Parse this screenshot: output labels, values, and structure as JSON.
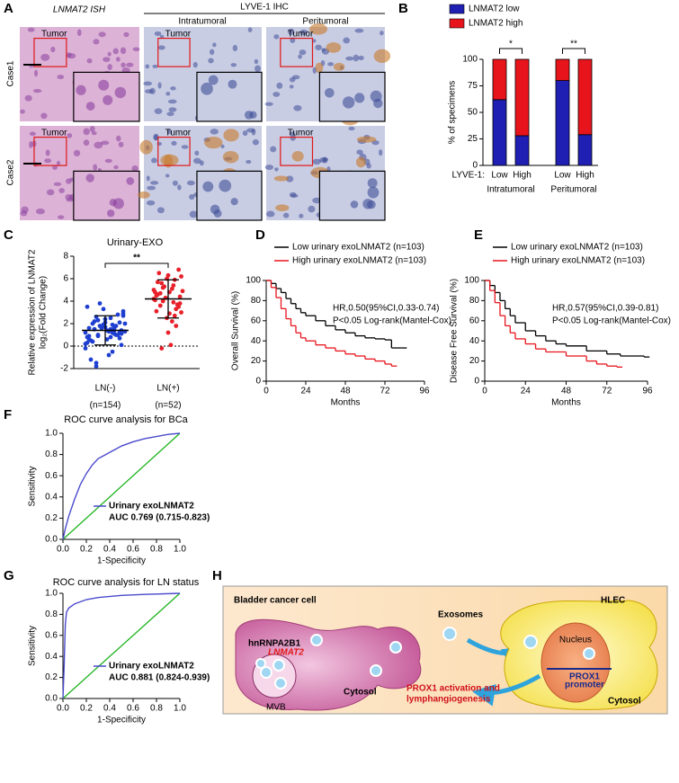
{
  "panel_a": {
    "label": "A",
    "ish_header": "LNMAT2 ISH",
    "ihc_header": "LYVE-1 IHC",
    "subheaders": [
      "Intratumoral",
      "Peritumoral"
    ],
    "rows": [
      "Case1",
      "Case2"
    ],
    "tumor_label": "Tumor"
  },
  "chart_data": [
    {
      "type": "stacked_bar",
      "label": "B",
      "ylabel": "% of specimens",
      "ylim": [
        0,
        100
      ],
      "yticks": [
        0,
        25,
        50,
        75,
        100
      ],
      "x_prefix": "LYVE-1:",
      "categories": [
        "Low",
        "High",
        "Low",
        "High"
      ],
      "group_labels": [
        "Intratumoral",
        "Peritumoral"
      ],
      "group_significance": [
        "*",
        "**"
      ],
      "series": [
        {
          "name": "LNMAT2 low",
          "color": "#1f1fb4",
          "values": [
            62,
            28,
            80,
            29
          ]
        },
        {
          "name": "LNMAT2 high",
          "color": "#e8141c",
          "values": [
            38,
            72,
            20,
            71
          ]
        }
      ]
    },
    {
      "type": "strip",
      "label": "C",
      "title": "Urinary-EXO",
      "ylabel": [
        "Relative expression of LNMAT2",
        "log₂(Fold Change)"
      ],
      "ylim": [
        -2,
        8
      ],
      "yticks": [
        -2,
        0,
        2,
        4,
        6,
        8
      ],
      "refline": 0,
      "significance": "**",
      "categories": [
        "LN(-)",
        "LN(+)"
      ],
      "n_labels": [
        "(n=154)",
        "(n=52)"
      ],
      "groups": [
        {
          "color": "#1f3fd0",
          "mean": 1.4,
          "sd": 1.3,
          "values": [
            1.2,
            0.8,
            1.5,
            2.1,
            1.9,
            0.3,
            -0.5,
            2.6,
            1.1,
            1.7,
            0.9,
            1.4,
            2.3,
            3.1,
            0.6,
            -1.2,
            1.0,
            1.8,
            2.0,
            1.3,
            0.4,
            2.8,
            1.6,
            -0.2,
            1.5,
            2.2,
            0.7,
            1.9,
            3.5,
            1.2,
            -1.8,
            0.1,
            2.4,
            1.6,
            1.1,
            0.9,
            2.7,
            1.4,
            0.5,
            1.8,
            3.8,
            1.3,
            -0.8,
            2.0,
            1.0,
            1.7,
            0.2,
            2.5,
            1.5,
            1.2,
            3.3,
            0.8,
            1.9,
            -1.5,
            1.4,
            2.1,
            0.6,
            1.6,
            1.0,
            2.9
          ]
        },
        {
          "color": "#e8202a",
          "mean": 4.2,
          "sd": 1.7,
          "values": [
            4.2,
            5.1,
            3.6,
            6.8,
            2.5,
            4.8,
            3.9,
            5.6,
            4.4,
            1.2,
            3.1,
            5.9,
            4.0,
            6.2,
            2.9,
            4.6,
            3.3,
            5.3,
            4.9,
            0.1,
            6.5,
            3.7,
            4.3,
            5.0,
            2.2,
            4.7,
            3.5,
            6.0,
            4.1,
            5.4,
            -0.2,
            3.8,
            6.3,
            4.5,
            2.7,
            5.2,
            3.0,
            4.8,
            5.7,
            1.8
          ]
        }
      ]
    },
    {
      "type": "survival",
      "label": "D",
      "xlabel": "Months",
      "ylabel": "Overall Survival (%)",
      "xlim": [
        0,
        96
      ],
      "xticks": [
        0,
        24,
        48,
        72,
        96
      ],
      "ylim": [
        0,
        100
      ],
      "yticks": [
        0,
        20,
        40,
        60,
        80,
        100
      ],
      "annotations": [
        "HR,0.50(95%CI,0.33-0.74)",
        "P<0.05 Log-rank(Mantel-Cox)"
      ],
      "series": [
        {
          "name": "Low urinary exoLNMAT2 (n=103)",
          "color": "#000000",
          "x": [
            0,
            3,
            6,
            9,
            12,
            15,
            18,
            21,
            24,
            30,
            36,
            42,
            48,
            54,
            60,
            66,
            72,
            76,
            82
          ],
          "values": [
            100,
            97,
            92,
            88,
            82,
            77,
            72,
            68,
            65,
            60,
            55,
            51,
            48,
            45,
            43,
            42,
            41,
            33,
            33
          ]
        },
        {
          "name": "High urinary exoLNMAT2 (n=103)",
          "color": "#e8141c",
          "x": [
            0,
            3,
            6,
            9,
            12,
            15,
            18,
            21,
            24,
            30,
            36,
            42,
            48,
            54,
            60,
            66,
            72,
            76
          ],
          "values": [
            100,
            93,
            83,
            72,
            62,
            55,
            48,
            43,
            40,
            36,
            33,
            30,
            27,
            25,
            22,
            20,
            17,
            15
          ]
        }
      ]
    },
    {
      "type": "survival",
      "label": "E",
      "xlabel": "Months",
      "ylabel": "Disease Free Survival (%)",
      "xlim": [
        0,
        96
      ],
      "xticks": [
        0,
        24,
        48,
        72,
        96
      ],
      "ylim": [
        0,
        100
      ],
      "yticks": [
        0,
        20,
        40,
        60,
        80,
        100
      ],
      "annotations": [
        "HR,0.57(95%CI,0.39-0.81)",
        "P<0.05 Log-rank(Mantel-Cox)"
      ],
      "series": [
        {
          "name": "Low urinary exoLNMAT2 (n=103)",
          "color": "#000000",
          "x": [
            0,
            3,
            6,
            9,
            12,
            15,
            18,
            24,
            30,
            36,
            42,
            48,
            60,
            72,
            80,
            94
          ],
          "values": [
            100,
            95,
            88,
            80,
            72,
            65,
            58,
            50,
            45,
            40,
            37,
            35,
            30,
            27,
            25,
            24
          ]
        },
        {
          "name": "High urinary exoLNMAT2 (n=103)",
          "color": "#e8141c",
          "x": [
            0,
            3,
            6,
            9,
            12,
            15,
            18,
            24,
            30,
            36,
            48,
            60,
            66,
            72,
            78
          ],
          "values": [
            100,
            90,
            78,
            65,
            55,
            48,
            42,
            37,
            32,
            29,
            25,
            20,
            17,
            15,
            14
          ]
        }
      ]
    },
    {
      "type": "roc",
      "label": "F",
      "title": "ROC curve analysis for BCa",
      "xlabel": "1-Specificity",
      "ylabel": "Sensitivity",
      "xlim": [
        0,
        1
      ],
      "xticks": [
        {
          "value": 0,
          "label": "0.0"
        },
        0.2,
        0.4,
        0.6,
        0.8,
        {
          "value": 1,
          "label": "1.0"
        }
      ],
      "ylim": [
        0,
        1
      ],
      "yticks": [
        {
          "value": 0,
          "label": "0.0"
        },
        0.2,
        0.4,
        0.6,
        0.8,
        {
          "value": 1,
          "label": "1.0"
        }
      ],
      "reference_color": "#1db31d",
      "annotation": "AUC 0.769 (0.715-0.823)",
      "series": [
        {
          "name": "Urinary exoLNMAT2",
          "color": "#4a4acc",
          "x": [
            0,
            0.02,
            0.05,
            0.1,
            0.15,
            0.2,
            0.25,
            0.3,
            0.4,
            0.5,
            0.6,
            0.7,
            0.8,
            0.9,
            1
          ],
          "values": [
            0,
            0.1,
            0.22,
            0.38,
            0.52,
            0.62,
            0.7,
            0.76,
            0.82,
            0.88,
            0.92,
            0.95,
            0.97,
            0.99,
            1
          ]
        }
      ]
    },
    {
      "type": "roc",
      "label": "G",
      "title": "ROC curve analysis for LN status",
      "xlabel": "1-Specificity",
      "ylabel": "Sensitivity",
      "xlim": [
        0,
        1
      ],
      "xticks": [
        {
          "value": 0,
          "label": "0.0"
        },
        0.2,
        0.4,
        0.6,
        0.8,
        {
          "value": 1,
          "label": "1.0"
        }
      ],
      "ylim": [
        0,
        1
      ],
      "yticks": [
        {
          "value": 0,
          "label": "0.0"
        },
        0.2,
        0.4,
        0.6,
        0.8,
        {
          "value": 1,
          "label": "1.0"
        }
      ],
      "reference_color": "#1db31d",
      "annotation": "AUC 0.881 (0.824-0.939)",
      "series": [
        {
          "name": "Urinary exoLNMAT2",
          "color": "#4a4acc",
          "x": [
            0,
            0.01,
            0.02,
            0.03,
            0.05,
            0.1,
            0.2,
            0.3,
            0.5,
            0.7,
            1
          ],
          "values": [
            0,
            0.3,
            0.7,
            0.82,
            0.86,
            0.9,
            0.94,
            0.96,
            0.98,
            0.99,
            1
          ]
        }
      ]
    }
  ],
  "panel_h": {
    "label": "H",
    "cancer_cell": "Bladder cancer cell",
    "hlec": "HLEC",
    "exosomes": "Exosomes",
    "protein": "hnRNPA2B1",
    "rna": "LNMAT2",
    "mvb": "MVB",
    "cytosol_left": "Cytosol",
    "nucleus": "Nucleus",
    "promoter": [
      "PROX1",
      "promoter"
    ],
    "cytosol_right": "Cytosol",
    "outcome": [
      "PROX1 activation and",
      "lymphangiogenesis"
    ]
  }
}
